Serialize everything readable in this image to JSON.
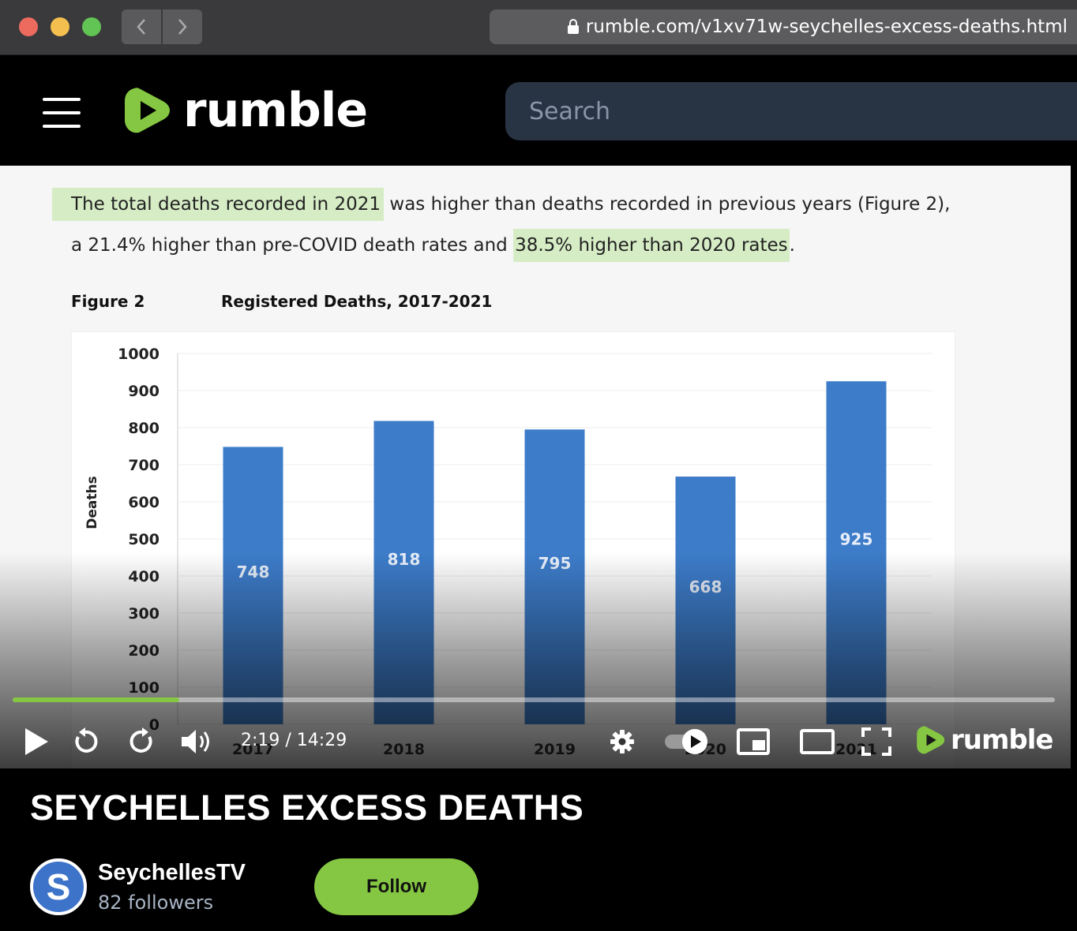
{
  "browser": {
    "url": "rumble.com/v1xv71w-seychelles-excess-deaths.html"
  },
  "header": {
    "logo_text": "rumble",
    "search_placeholder": "Search"
  },
  "video": {
    "paragraph": {
      "line1_hl": "The total deaths recorded in 2021",
      "line1_rest": " was higher than deaths recorded in previous years (Figure 2),",
      "line2_start": "a 21.4% higher than pre-COVID death rates and ",
      "line2_hl": "38.5% higher than 2020 rates",
      "line2_end": "."
    },
    "figure_label": "Figure 2",
    "player": {
      "current_time": "2:19",
      "duration": "14:29",
      "time_display": "2:19 / 14:29",
      "progress": 0.16,
      "logo_text": "rumble"
    }
  },
  "chart_data": {
    "type": "bar",
    "title": "Registered Deaths, 2017-2021",
    "ylabel": "Deaths",
    "xlabel": "",
    "categories": [
      "2017",
      "2018",
      "2019",
      "2020",
      "2021"
    ],
    "values": [
      748,
      818,
      795,
      668,
      925
    ],
    "ylim": [
      0,
      1000
    ],
    "yticks": [
      0,
      100,
      200,
      300,
      400,
      500,
      600,
      700,
      800,
      900,
      1000
    ],
    "bar_color": "#3d7cc9",
    "grid": true
  },
  "video_title": "SEYCHELLES EXCESS DEATHS",
  "channel": {
    "avatar_letter": "S",
    "name": "SeychellesTV",
    "followers": "82 followers",
    "follow_label": "Follow"
  },
  "colors": {
    "accent": "#85c742",
    "search_bg": "#283344",
    "highlight": "#d5ecc5"
  }
}
